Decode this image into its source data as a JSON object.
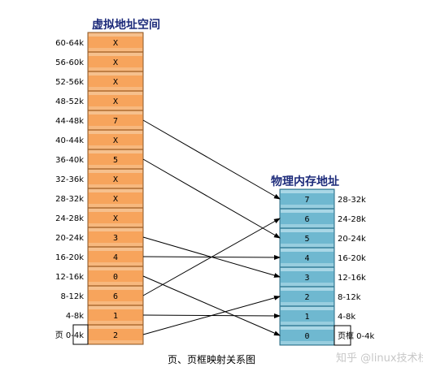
{
  "virtual": {
    "title": "虚拟地址空间",
    "rows": [
      {
        "label": "60-64k",
        "value": "X"
      },
      {
        "label": "56-60k",
        "value": "X"
      },
      {
        "label": "52-56k",
        "value": "X"
      },
      {
        "label": "48-52k",
        "value": "X"
      },
      {
        "label": "44-48k",
        "value": "7"
      },
      {
        "label": "40-44k",
        "value": "X"
      },
      {
        "label": "36-40k",
        "value": "5"
      },
      {
        "label": "32-36k",
        "value": "X"
      },
      {
        "label": "28-32k",
        "value": "X"
      },
      {
        "label": "24-28k",
        "value": "X"
      },
      {
        "label": "20-24k",
        "value": "3"
      },
      {
        "label": "16-20k",
        "value": "4"
      },
      {
        "label": "12-16k",
        "value": "0"
      },
      {
        "label": "8-12k",
        "value": "6"
      },
      {
        "label": "4-8k",
        "value": "1"
      },
      {
        "label": "页 0-4k",
        "value": "2"
      }
    ],
    "color_fill": "#f7a45c",
    "color_stripe": "#f6c08d",
    "color_border": "#8a5a2e"
  },
  "physical": {
    "title": "物理内存地址",
    "rows": [
      {
        "label": "28-32k",
        "value": "7"
      },
      {
        "label": "24-28k",
        "value": "6"
      },
      {
        "label": "20-24k",
        "value": "5"
      },
      {
        "label": "16-20k",
        "value": "4"
      },
      {
        "label": "12-16k",
        "value": "3"
      },
      {
        "label": "8-12k",
        "value": "2"
      },
      {
        "label": "4-8k",
        "value": "1"
      },
      {
        "label": "页框 0-4k",
        "value": "0"
      }
    ],
    "color_fill": "#6fb8d0",
    "color_stripe": "#a9d7e6",
    "color_border": "#2f6e86"
  },
  "mappings": [
    {
      "page": "44-48k",
      "frame": "7"
    },
    {
      "page": "36-40k",
      "frame": "5"
    },
    {
      "page": "20-24k",
      "frame": "3"
    },
    {
      "page": "16-20k",
      "frame": "4"
    },
    {
      "page": "12-16k",
      "frame": "0"
    },
    {
      "page": "8-12k",
      "frame": "6"
    },
    {
      "page": "4-8k",
      "frame": "1"
    },
    {
      "page": "页 0-4k",
      "frame": "2"
    }
  ],
  "caption": "页、页框映射关系图",
  "watermark": "知乎 @linux技术栈"
}
